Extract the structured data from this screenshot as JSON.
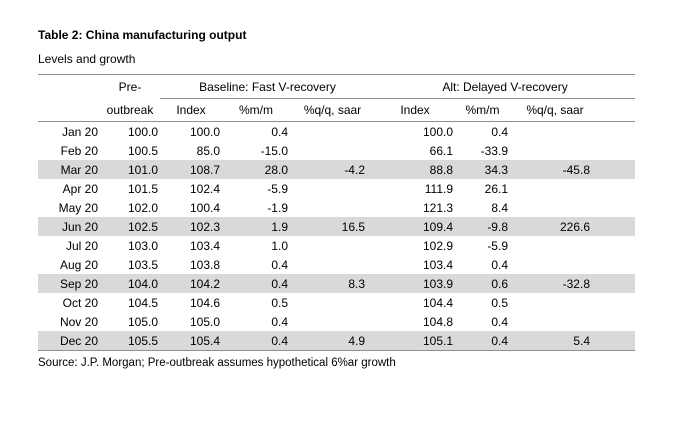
{
  "page": {
    "source_note": "Source: J.P. Morgan; Pre-outbreak assumes hypothetical 6%ar growth"
  },
  "chart_data": {
    "type": "table",
    "title": "Table 2: China manufacturing output",
    "subtitle": "Levels and growth",
    "source": "Source: J.P. Morgan; Pre-outbreak assumes hypothetical 6%ar growth",
    "group_headers": {
      "pre_line1": "Pre-",
      "pre_line2": "outbreak",
      "baseline": "Baseline: Fast V-recovery",
      "alt": "Alt: Delayed V-recovery"
    },
    "sub_headers": {
      "baseline_index": "Index",
      "baseline_mm": "%m/m",
      "baseline_qq": "%q/q, saar",
      "alt_index": "Index",
      "alt_mm": "%m/m",
      "alt_qq": "%q/q, saar"
    },
    "shaded_rows": [
      "Mar 20",
      "Jun 20",
      "Sep 20",
      "Dec 20"
    ],
    "styles": {
      "shaded_row_bg": "#d9d9d9",
      "rule_color": "#909090",
      "text_color": "#000000"
    },
    "rows": [
      {
        "month": "Jan 20",
        "pre_outbreak": "100.0",
        "baseline_index": "100.0",
        "baseline_mm": "0.4",
        "baseline_qq_saar": "",
        "alt_index": "100.0",
        "alt_mm": "0.4",
        "alt_qq_saar": "",
        "shaded": false
      },
      {
        "month": "Feb 20",
        "pre_outbreak": "100.5",
        "baseline_index": "85.0",
        "baseline_mm": "-15.0",
        "baseline_qq_saar": "",
        "alt_index": "66.1",
        "alt_mm": "-33.9",
        "alt_qq_saar": "",
        "shaded": false
      },
      {
        "month": "Mar 20",
        "pre_outbreak": "101.0",
        "baseline_index": "108.7",
        "baseline_mm": "28.0",
        "baseline_qq_saar": "-4.2",
        "alt_index": "88.8",
        "alt_mm": "34.3",
        "alt_qq_saar": "-45.8",
        "shaded": true
      },
      {
        "month": "Apr 20",
        "pre_outbreak": "101.5",
        "baseline_index": "102.4",
        "baseline_mm": "-5.9",
        "baseline_qq_saar": "",
        "alt_index": "111.9",
        "alt_mm": "26.1",
        "alt_qq_saar": "",
        "shaded": false
      },
      {
        "month": "May 20",
        "pre_outbreak": "102.0",
        "baseline_index": "100.4",
        "baseline_mm": "-1.9",
        "baseline_qq_saar": "",
        "alt_index": "121.3",
        "alt_mm": "8.4",
        "alt_qq_saar": "",
        "shaded": false
      },
      {
        "month": "Jun 20",
        "pre_outbreak": "102.5",
        "baseline_index": "102.3",
        "baseline_mm": "1.9",
        "baseline_qq_saar": "16.5",
        "alt_index": "109.4",
        "alt_mm": "-9.8",
        "alt_qq_saar": "226.6",
        "shaded": true
      },
      {
        "month": "Jul 20",
        "pre_outbreak": "103.0",
        "baseline_index": "103.4",
        "baseline_mm": "1.0",
        "baseline_qq_saar": "",
        "alt_index": "102.9",
        "alt_mm": "-5.9",
        "alt_qq_saar": "",
        "shaded": false
      },
      {
        "month": "Aug 20",
        "pre_outbreak": "103.5",
        "baseline_index": "103.8",
        "baseline_mm": "0.4",
        "baseline_qq_saar": "",
        "alt_index": "103.4",
        "alt_mm": "0.4",
        "alt_qq_saar": "",
        "shaded": false
      },
      {
        "month": "Sep 20",
        "pre_outbreak": "104.0",
        "baseline_index": "104.2",
        "baseline_mm": "0.4",
        "baseline_qq_saar": "8.3",
        "alt_index": "103.9",
        "alt_mm": "0.6",
        "alt_qq_saar": "-32.8",
        "shaded": true
      },
      {
        "month": "Oct 20",
        "pre_outbreak": "104.5",
        "baseline_index": "104.6",
        "baseline_mm": "0.5",
        "baseline_qq_saar": "",
        "alt_index": "104.4",
        "alt_mm": "0.5",
        "alt_qq_saar": "",
        "shaded": false
      },
      {
        "month": "Nov 20",
        "pre_outbreak": "105.0",
        "baseline_index": "105.0",
        "baseline_mm": "0.4",
        "baseline_qq_saar": "",
        "alt_index": "104.8",
        "alt_mm": "0.4",
        "alt_qq_saar": "",
        "shaded": false
      },
      {
        "month": "Dec 20",
        "pre_outbreak": "105.5",
        "baseline_index": "105.4",
        "baseline_mm": "0.4",
        "baseline_qq_saar": "4.9",
        "alt_index": "105.1",
        "alt_mm": "0.4",
        "alt_qq_saar": "5.4",
        "shaded": true
      }
    ]
  }
}
